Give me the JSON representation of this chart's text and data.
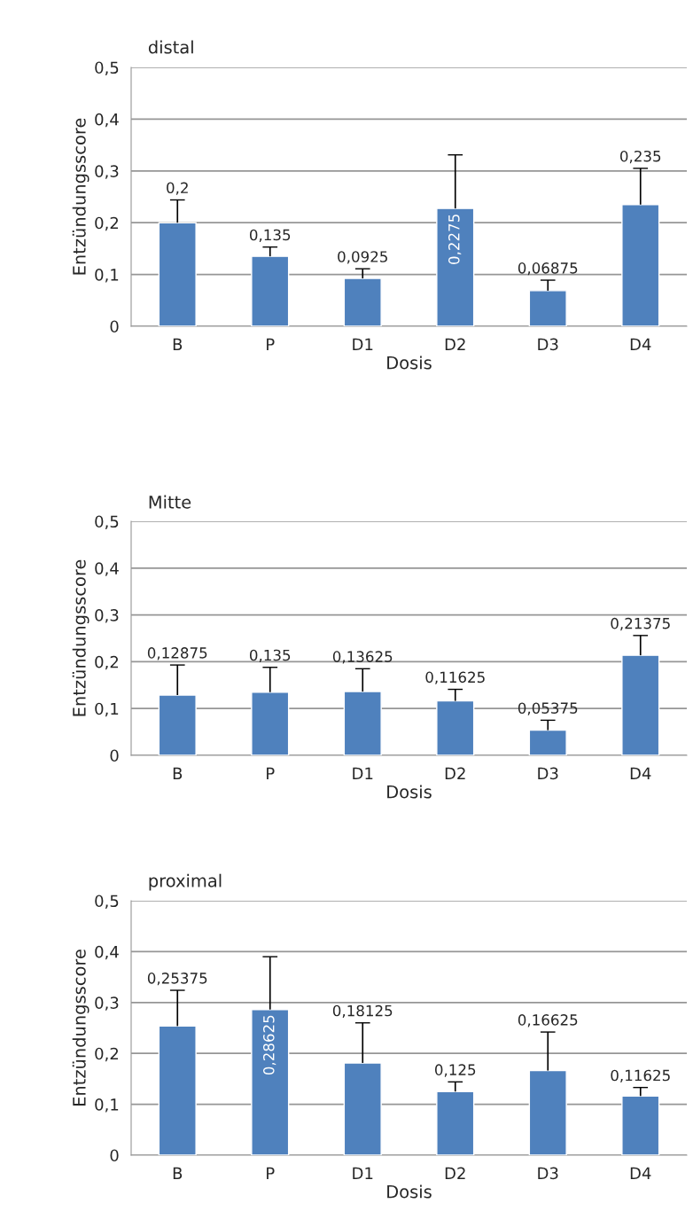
{
  "chart_data": [
    {
      "type": "bar",
      "title": "distal",
      "xlabel": "Dosis",
      "ylabel": "Entzündungsscore",
      "categories": [
        "B",
        "P",
        "D1",
        "D2",
        "D3",
        "D4"
      ],
      "values": [
        0.2,
        0.135,
        0.0925,
        0.2275,
        0.06875,
        0.235
      ],
      "errors": [
        [
          0.2,
          0.244
        ],
        [
          0.135,
          0.153
        ],
        [
          0.0925,
          0.111
        ],
        [
          0.2275,
          0.331
        ],
        [
          0.06875,
          0.089
        ],
        [
          0.235,
          0.305
        ]
      ],
      "value_labels": [
        "0,2",
        "0,135",
        "0,0925",
        "0,2275",
        "0,06875",
        "0,235"
      ],
      "color": "#4f81bd",
      "ylim": [
        0,
        0.5
      ],
      "yticks": [
        {
          "value": 0,
          "label": "0"
        },
        {
          "value": 0.1,
          "label": "0,1"
        },
        {
          "value": 0.2,
          "label": "0,2"
        },
        {
          "value": 0.3,
          "label": "0,3"
        },
        {
          "value": 0.4,
          "label": "0,4"
        },
        {
          "value": 0.5,
          "label": "0,5"
        }
      ],
      "grid": "y"
    },
    {
      "type": "bar",
      "title": "Mitte",
      "xlabel": "Dosis",
      "ylabel": "Entzündungsscore",
      "categories": [
        "B",
        "P",
        "D1",
        "D2",
        "D3",
        "D4"
      ],
      "values": [
        0.12875,
        0.135,
        0.13625,
        0.11625,
        0.05375,
        0.21375
      ],
      "errors": [
        [
          0.12875,
          0.193
        ],
        [
          0.135,
          0.188
        ],
        [
          0.13625,
          0.185
        ],
        [
          0.11625,
          0.141
        ],
        [
          0.05375,
          0.075
        ],
        [
          0.21375,
          0.256
        ]
      ],
      "value_labels": [
        "0,12875",
        "0,135",
        "0,13625",
        "0,11625",
        "0,05375",
        "0,21375"
      ],
      "color": "#4f81bd",
      "ylim": [
        0,
        0.5
      ],
      "yticks": [
        {
          "value": 0,
          "label": "0"
        },
        {
          "value": 0.1,
          "label": "0,1"
        },
        {
          "value": 0.2,
          "label": "0,2"
        },
        {
          "value": 0.3,
          "label": "0,3"
        },
        {
          "value": 0.4,
          "label": "0,4"
        },
        {
          "value": 0.5,
          "label": "0,5"
        }
      ],
      "grid": "y"
    },
    {
      "type": "bar",
      "title": "proximal",
      "xlabel": "Dosis",
      "ylabel": "Entzündungsscore",
      "categories": [
        "B",
        "P",
        "D1",
        "D2",
        "D3",
        "D4"
      ],
      "values": [
        0.25375,
        0.28625,
        0.18125,
        0.125,
        0.16625,
        0.11625
      ],
      "errors": [
        [
          0.25375,
          0.324
        ],
        [
          0.28625,
          0.39
        ],
        [
          0.18125,
          0.26
        ],
        [
          0.125,
          0.144
        ],
        [
          0.16625,
          0.242
        ],
        [
          0.11625,
          0.133
        ]
      ],
      "value_labels": [
        "0,25375",
        "0,28625",
        "0,18125",
        "0,125",
        "0,16625",
        "0,11625"
      ],
      "color": "#4f81bd",
      "ylim": [
        0,
        0.5
      ],
      "yticks": [
        {
          "value": 0,
          "label": "0"
        },
        {
          "value": 0.1,
          "label": "0,1"
        },
        {
          "value": 0.2,
          "label": "0,2"
        },
        {
          "value": 0.3,
          "label": "0,3"
        },
        {
          "value": 0.4,
          "label": "0,4"
        },
        {
          "value": 0.5,
          "label": "0,5"
        }
      ],
      "grid": "y"
    }
  ]
}
